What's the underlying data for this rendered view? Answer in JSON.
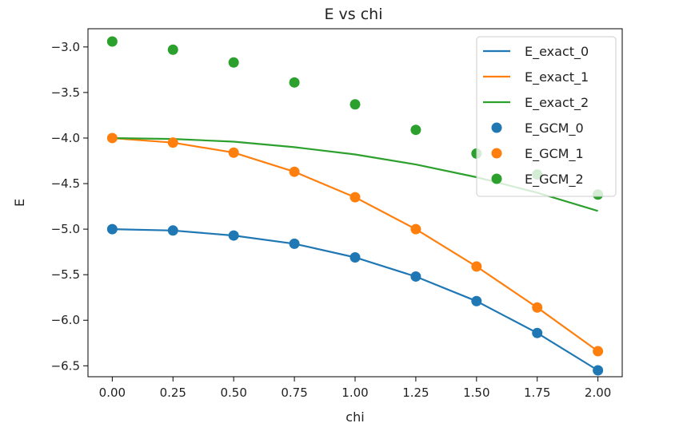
{
  "chart_data": {
    "type": "line",
    "title": "E vs chi",
    "xlabel": "chi",
    "ylabel": "E",
    "xlim": [
      -0.1,
      2.1
    ],
    "ylim": [
      -6.62,
      -2.8
    ],
    "xticks": [
      0.0,
      0.25,
      0.5,
      0.75,
      1.0,
      1.25,
      1.5,
      1.75,
      2.0
    ],
    "xtick_labels": [
      "0.00",
      "0.25",
      "0.50",
      "0.75",
      "1.00",
      "1.25",
      "1.50",
      "1.75",
      "2.00"
    ],
    "yticks": [
      -3.0,
      -3.5,
      -4.0,
      -4.5,
      -5.0,
      -5.5,
      -6.0,
      -6.5
    ],
    "ytick_labels": [
      "−3.0",
      "−3.5",
      "−4.0",
      "−4.5",
      "−5.0",
      "−5.5",
      "−6.0",
      "−6.5"
    ],
    "grid": false,
    "legend_position": "top-right",
    "x": [
      0.0,
      0.25,
      0.5,
      0.75,
      1.0,
      1.25,
      1.5,
      1.75,
      2.0
    ],
    "series": [
      {
        "name": "E_exact_0",
        "kind": "line",
        "color": "#1f77b4",
        "values": [
          -5.0,
          -5.015,
          -5.07,
          -5.16,
          -5.31,
          -5.52,
          -5.79,
          -6.14,
          -6.55
        ]
      },
      {
        "name": "E_exact_1",
        "kind": "line",
        "color": "#ff7f0e",
        "values": [
          -4.0,
          -4.05,
          -4.16,
          -4.37,
          -4.65,
          -5.0,
          -5.41,
          -5.86,
          -6.34
        ]
      },
      {
        "name": "E_exact_2",
        "kind": "line",
        "color": "#2ca02c",
        "values": [
          -4.0,
          -4.01,
          -4.04,
          -4.1,
          -4.18,
          -4.29,
          -4.43,
          -4.6,
          -4.8
        ]
      },
      {
        "name": "E_GCM_0",
        "kind": "scatter",
        "color": "#1f77b4",
        "values": [
          -5.0,
          -5.015,
          -5.07,
          -5.16,
          -5.31,
          -5.52,
          -5.79,
          -6.14,
          -6.55
        ]
      },
      {
        "name": "E_GCM_1",
        "kind": "scatter",
        "color": "#ff7f0e",
        "values": [
          -4.0,
          -4.05,
          -4.16,
          -4.37,
          -4.65,
          -5.0,
          -5.41,
          -5.86,
          -6.34
        ]
      },
      {
        "name": "E_GCM_2",
        "kind": "scatter",
        "color": "#2ca02c",
        "values": [
          -2.94,
          -3.03,
          -3.17,
          -3.39,
          -3.63,
          -3.91,
          -4.17,
          -4.4,
          -4.62
        ]
      }
    ]
  }
}
